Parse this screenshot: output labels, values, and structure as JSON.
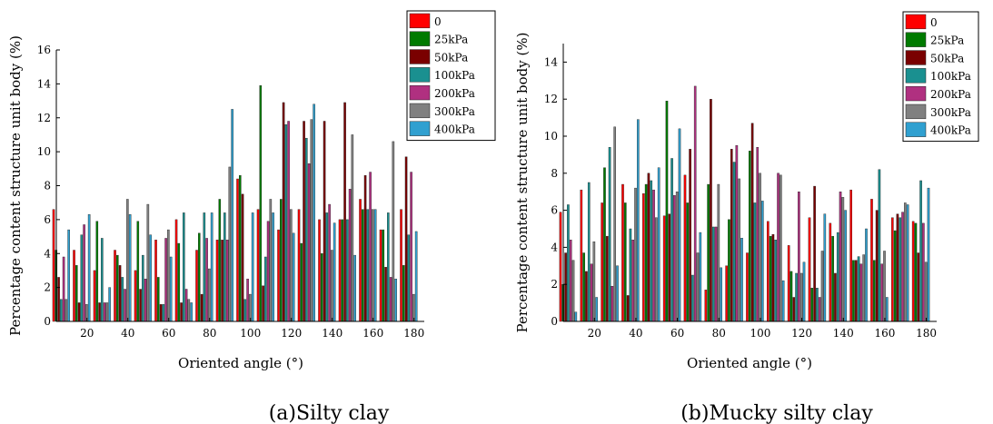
{
  "chart_data": [
    {
      "type": "bar",
      "caption": "(a)Silty clay",
      "xlabel": "Oriented angle (°)",
      "ylabel": "Percentage content structure unit body (%)",
      "xlim": [
        5,
        185
      ],
      "ylim": [
        0,
        16
      ],
      "x_ticks": [
        20,
        40,
        60,
        80,
        100,
        120,
        140,
        160,
        180
      ],
      "y_ticks": [
        0,
        2,
        4,
        6,
        8,
        10,
        12,
        14,
        16
      ],
      "legend_position": "top-right",
      "grid": false,
      "categories": [
        7.5,
        17.5,
        27.5,
        37.5,
        47.5,
        57.5,
        67.5,
        77.5,
        87.5,
        97.5,
        107.5,
        117.5,
        127.5,
        137.5,
        147.5,
        157.5,
        167.5,
        177.5
      ],
      "series": [
        {
          "name": "0",
          "color": "#ff0000",
          "values": [
            6.6,
            4.2,
            3.0,
            4.2,
            3.0,
            4.8,
            6.0,
            4.2,
            4.8,
            8.4,
            6.6,
            5.4,
            6.6,
            6.0,
            6.0,
            7.2,
            5.4,
            6.6
          ]
        },
        {
          "name": "25kPa",
          "color": "#007a00",
          "values": [
            4.2,
            3.3,
            5.9,
            3.9,
            5.9,
            2.6,
            4.6,
            5.2,
            7.2,
            8.6,
            13.9,
            7.2,
            4.6,
            4.0,
            6.0,
            6.6,
            5.4,
            3.3
          ]
        },
        {
          "name": "50kPa",
          "color": "#7a0000",
          "values": [
            2.6,
            1.1,
            1.1,
            3.3,
            1.9,
            1.0,
            1.1,
            1.6,
            4.8,
            7.5,
            2.1,
            12.9,
            11.8,
            11.8,
            12.9,
            8.6,
            3.2,
            9.7
          ]
        },
        {
          "name": "100kPa",
          "color": "#1a9090",
          "values": [
            1.3,
            5.1,
            4.9,
            2.6,
            3.9,
            1.0,
            6.4,
            6.4,
            6.4,
            1.3,
            3.8,
            11.6,
            10.8,
            6.4,
            6.0,
            6.6,
            6.4,
            5.1
          ]
        },
        {
          "name": "200kPa",
          "color": "#b03080",
          "values": [
            3.8,
            5.7,
            1.1,
            1.9,
            2.5,
            4.9,
            1.9,
            4.9,
            4.8,
            2.5,
            5.9,
            11.8,
            9.3,
            6.9,
            7.8,
            8.8,
            2.6,
            8.8
          ]
        },
        {
          "name": "300kPa",
          "color": "#808080",
          "values": [
            1.3,
            1.0,
            1.1,
            7.2,
            6.9,
            5.4,
            1.3,
            3.1,
            9.1,
            1.6,
            7.2,
            6.6,
            11.9,
            4.2,
            11.0,
            6.6,
            10.6,
            1.6
          ]
        },
        {
          "name": "400kPa",
          "color": "#30a0d0",
          "values": [
            5.4,
            6.3,
            2.0,
            6.3,
            5.1,
            3.8,
            1.1,
            6.4,
            12.5,
            6.4,
            6.4,
            5.2,
            12.8,
            5.8,
            3.9,
            6.6,
            2.5,
            5.3
          ]
        }
      ]
    },
    {
      "type": "bar",
      "caption": "(b)Mucky silty clay",
      "xlabel": "Oriented angle (°)",
      "ylabel": "Percentage content structure unit body (%)",
      "xlim": [
        5,
        185
      ],
      "ylim": [
        0,
        15
      ],
      "x_ticks": [
        20,
        40,
        60,
        80,
        100,
        120,
        140,
        160,
        180
      ],
      "y_ticks": [
        0,
        2,
        4,
        6,
        8,
        10,
        12,
        14
      ],
      "legend_position": "top-right",
      "grid": false,
      "categories": [
        7.5,
        17.5,
        27.5,
        37.5,
        47.5,
        57.5,
        67.5,
        77.5,
        87.5,
        97.5,
        107.5,
        117.5,
        127.5,
        137.5,
        147.5,
        157.5,
        167.5,
        177.5
      ],
      "series": [
        {
          "name": "0",
          "color": "#ff0000",
          "values": [
            5.9,
            7.1,
            6.4,
            7.4,
            6.9,
            5.7,
            7.9,
            1.7,
            3.0,
            3.7,
            5.4,
            4.1,
            5.6,
            5.3,
            7.1,
            6.6,
            5.6,
            5.4
          ]
        },
        {
          "name": "25kPa",
          "color": "#007a00",
          "values": [
            2.0,
            3.7,
            8.3,
            6.4,
            7.4,
            11.9,
            6.4,
            7.4,
            5.5,
            9.2,
            4.6,
            2.7,
            1.8,
            4.6,
            3.3,
            3.3,
            4.9,
            5.3
          ]
        },
        {
          "name": "50kPa",
          "color": "#7a0000",
          "values": [
            3.7,
            2.7,
            4.6,
            1.4,
            8.0,
            5.8,
            9.3,
            12.0,
            9.3,
            10.7,
            4.7,
            1.3,
            7.3,
            2.6,
            3.3,
            6.0,
            5.8,
            3.7
          ]
        },
        {
          "name": "100kPa",
          "color": "#1a9090",
          "values": [
            6.3,
            7.5,
            9.4,
            5.0,
            7.6,
            8.8,
            2.5,
            5.1,
            8.6,
            6.4,
            4.4,
            2.6,
            1.8,
            4.8,
            3.5,
            8.2,
            5.6,
            7.6
          ]
        },
        {
          "name": "200kPa",
          "color": "#b03080",
          "values": [
            4.4,
            3.1,
            1.9,
            4.4,
            7.1,
            6.8,
            12.7,
            5.1,
            9.5,
            9.4,
            8.0,
            7.0,
            1.3,
            7.0,
            3.1,
            3.1,
            5.9,
            5.3
          ]
        },
        {
          "name": "300kPa",
          "color": "#808080",
          "values": [
            3.3,
            4.3,
            10.5,
            7.2,
            5.6,
            7.0,
            3.7,
            7.4,
            7.7,
            8.0,
            7.9,
            2.6,
            3.8,
            6.7,
            3.6,
            3.8,
            6.4,
            3.2
          ]
        },
        {
          "name": "400kPa",
          "color": "#30a0d0",
          "values": [
            0.5,
            1.3,
            3.0,
            10.9,
            8.3,
            10.4,
            4.8,
            2.9,
            4.5,
            6.5,
            2.2,
            3.2,
            5.8,
            6.0,
            5.0,
            1.3,
            6.3,
            7.2
          ]
        }
      ]
    }
  ]
}
